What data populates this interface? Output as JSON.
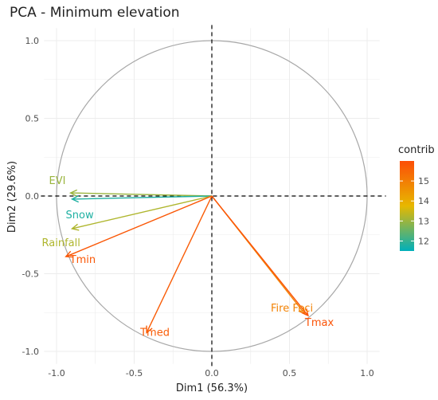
{
  "chart_data": {
    "type": "pca-correlation-circle",
    "title": "PCA - Minimum elevation",
    "xlabel": "Dim1 (56.3%)",
    "ylabel": "Dim2 (29.6%)",
    "xlim": [
      -1.0,
      1.0
    ],
    "ylim": [
      -1.0,
      1.0
    ],
    "x_ticks": [
      -1.0,
      -0.5,
      0.0,
      0.5,
      1.0
    ],
    "y_ticks": [
      -1.0,
      -0.5,
      0.0,
      0.5,
      1.0
    ],
    "x_tick_labels": [
      "-1.0",
      "-0.5",
      "0.0",
      "0.5",
      "1.0"
    ],
    "y_tick_labels": [
      "-1.0",
      "-0.5",
      "0.0",
      "0.5",
      "1.0"
    ],
    "grid": true,
    "legend": {
      "title": "contrib",
      "placement": "right",
      "range": [
        11.5,
        16
      ],
      "ticks": [
        12,
        13,
        14,
        15
      ],
      "tick_labels": [
        "12",
        "13",
        "14",
        "15"
      ]
    },
    "variables": [
      {
        "name": "EVI",
        "x": -0.91,
        "y": 0.02,
        "contrib": 13.0
      },
      {
        "name": "Snow",
        "x": -0.9,
        "y": -0.02,
        "contrib": 11.8
      },
      {
        "name": "Rainfall",
        "x": -0.9,
        "y": -0.21,
        "contrib": 13.2
      },
      {
        "name": "Tmin",
        "x": -0.94,
        "y": -0.39,
        "contrib": 15.8
      },
      {
        "name": "Tmed",
        "x": -0.42,
        "y": -0.88,
        "contrib": 15.7
      },
      {
        "name": "Fire Foci",
        "x": 0.6,
        "y": -0.76,
        "contrib": 14.9
      },
      {
        "name": "Tmax",
        "x": 0.62,
        "y": -0.77,
        "contrib": 15.9
      }
    ]
  }
}
